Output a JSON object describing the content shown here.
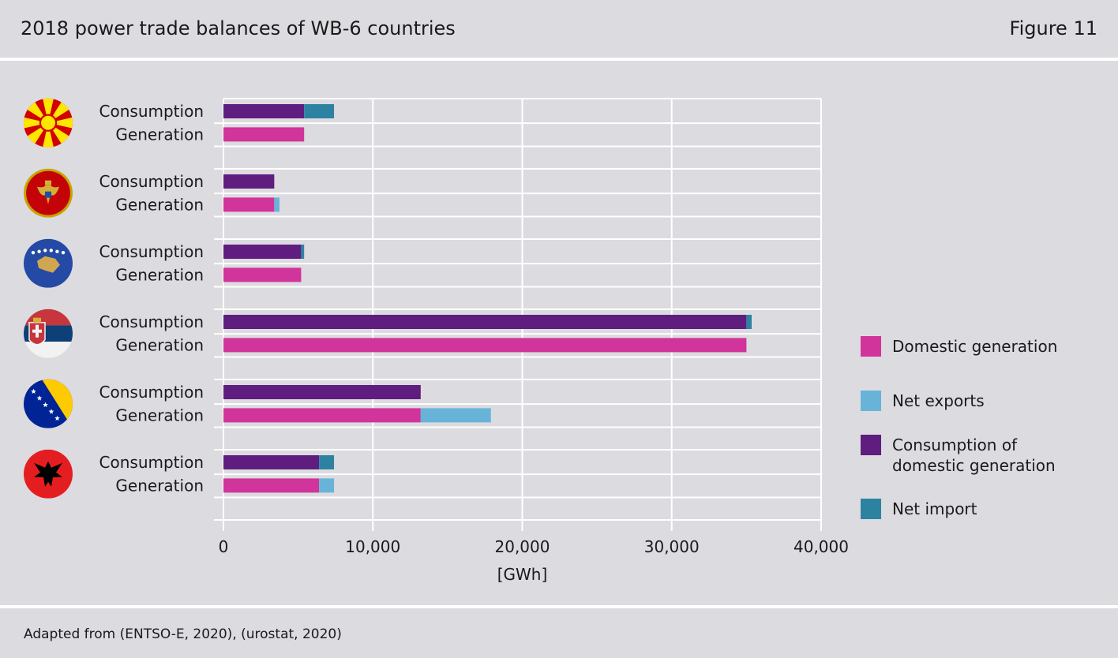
{
  "header": {
    "title": "2018 power trade balances of WB-6 countries",
    "figure": "Figure 11"
  },
  "footer": {
    "source": "Adapted from (ENTSO-E, 2020), (urostat, 2020)"
  },
  "chart_data": {
    "type": "bar",
    "orientation": "horizontal",
    "stacked": true,
    "xlabel": "[GWh]",
    "xlim": [
      0,
      40000
    ],
    "xticks": [
      0,
      10000,
      20000,
      30000,
      40000
    ],
    "xtick_labels": [
      "0",
      "10,000",
      "20,000",
      "30,000",
      "40,000"
    ],
    "grid": true,
    "row_labels": {
      "consumption": "Consumption",
      "generation": "Generation"
    },
    "countries": [
      {
        "flag": "north-macedonia",
        "consumption": {
          "domestic": 5400,
          "net_import": 2000
        },
        "generation": {
          "domestic": 5400,
          "net_exports": 0
        }
      },
      {
        "flag": "montenegro",
        "consumption": {
          "domestic": 3400,
          "net_import": 0
        },
        "generation": {
          "domestic": 3400,
          "net_exports": 350
        }
      },
      {
        "flag": "kosovo",
        "consumption": {
          "domestic": 5200,
          "net_import": 200
        },
        "generation": {
          "domestic": 5200,
          "net_exports": 0
        }
      },
      {
        "flag": "serbia",
        "consumption": {
          "domestic": 35000,
          "net_import": 350
        },
        "generation": {
          "domestic": 35000,
          "net_exports": 0
        }
      },
      {
        "flag": "bosnia-and-herzegovina",
        "consumption": {
          "domestic": 13200,
          "net_import": 0
        },
        "generation": {
          "domestic": 13200,
          "net_exports": 4700
        }
      },
      {
        "flag": "albania",
        "consumption": {
          "domestic": 6400,
          "net_import": 1000
        },
        "generation": {
          "domestic": 6400,
          "net_exports": 1000
        }
      }
    ],
    "legend": {
      "placement": "right",
      "items": [
        {
          "key": "domestic_generation",
          "label": "Domestic generation",
          "color": "#d1349a"
        },
        {
          "key": "net_exports",
          "label": "Net exports",
          "color": "#68b4d8"
        },
        {
          "key": "consumption_domestic",
          "label": "Consumption of domestic generation",
          "color": "#5e1d7f"
        },
        {
          "key": "net_import",
          "label": "Net import",
          "color": "#2e82a1"
        }
      ]
    }
  }
}
